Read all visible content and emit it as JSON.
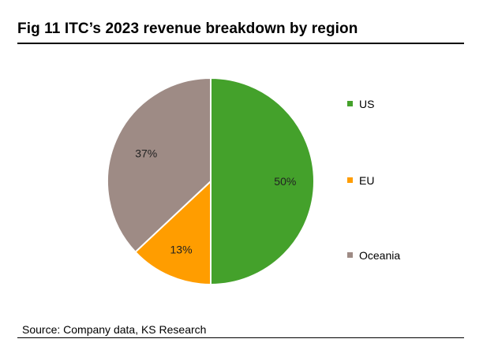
{
  "title": "Fig 11  ITC’s 2023 revenue breakdown by region",
  "source": "Source: Company data, KS Research",
  "chart_data": {
    "type": "pie",
    "title": "Fig 11  ITC’s 2023 revenue breakdown by region",
    "categories": [
      "US",
      "EU",
      "Oceania"
    ],
    "values": [
      50,
      13,
      37
    ],
    "labels": [
      "50%",
      "13%",
      "37%"
    ],
    "colors": [
      "#44a12b",
      "#ff9d00",
      "#9e8b85"
    ],
    "legend": "right",
    "start_angle": "12 o'clock",
    "direction": "clockwise"
  }
}
